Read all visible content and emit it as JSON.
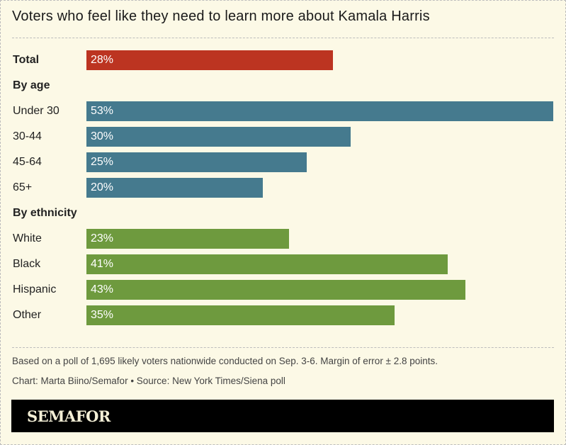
{
  "chart_data": {
    "type": "bar",
    "orientation": "horizontal",
    "title": "Voters who feel like they need to learn more about Kamala Harris",
    "unit": "%",
    "xlim": [
      0,
      53
    ],
    "groups": [
      {
        "heading": "",
        "rows": [
          {
            "label": "Total",
            "value": 28,
            "bold": true
          }
        ],
        "color": "#bc3421"
      },
      {
        "heading": "By age",
        "rows": [
          {
            "label": "Under 30",
            "value": 53
          },
          {
            "label": "30-44",
            "value": 30
          },
          {
            "label": "45-64",
            "value": 25
          },
          {
            "label": "65+",
            "value": 20
          }
        ],
        "color": "#457a8e"
      },
      {
        "heading": "By ethnicity",
        "rows": [
          {
            "label": "White",
            "value": 23
          },
          {
            "label": "Black",
            "value": 41
          },
          {
            "label": "Hispanic",
            "value": 43
          },
          {
            "label": "Other",
            "value": 35
          }
        ],
        "color": "#6e9a3e"
      }
    ]
  },
  "notes": {
    "methodology": "Based on a poll of 1,695 likely voters nationwide conducted on Sep. 3-6. Margin of error ± 2.8 points.",
    "credit": "Chart: Marta Biino/Semafor • Source: New York Times/Siena poll"
  },
  "brand": "SEMAFOR"
}
